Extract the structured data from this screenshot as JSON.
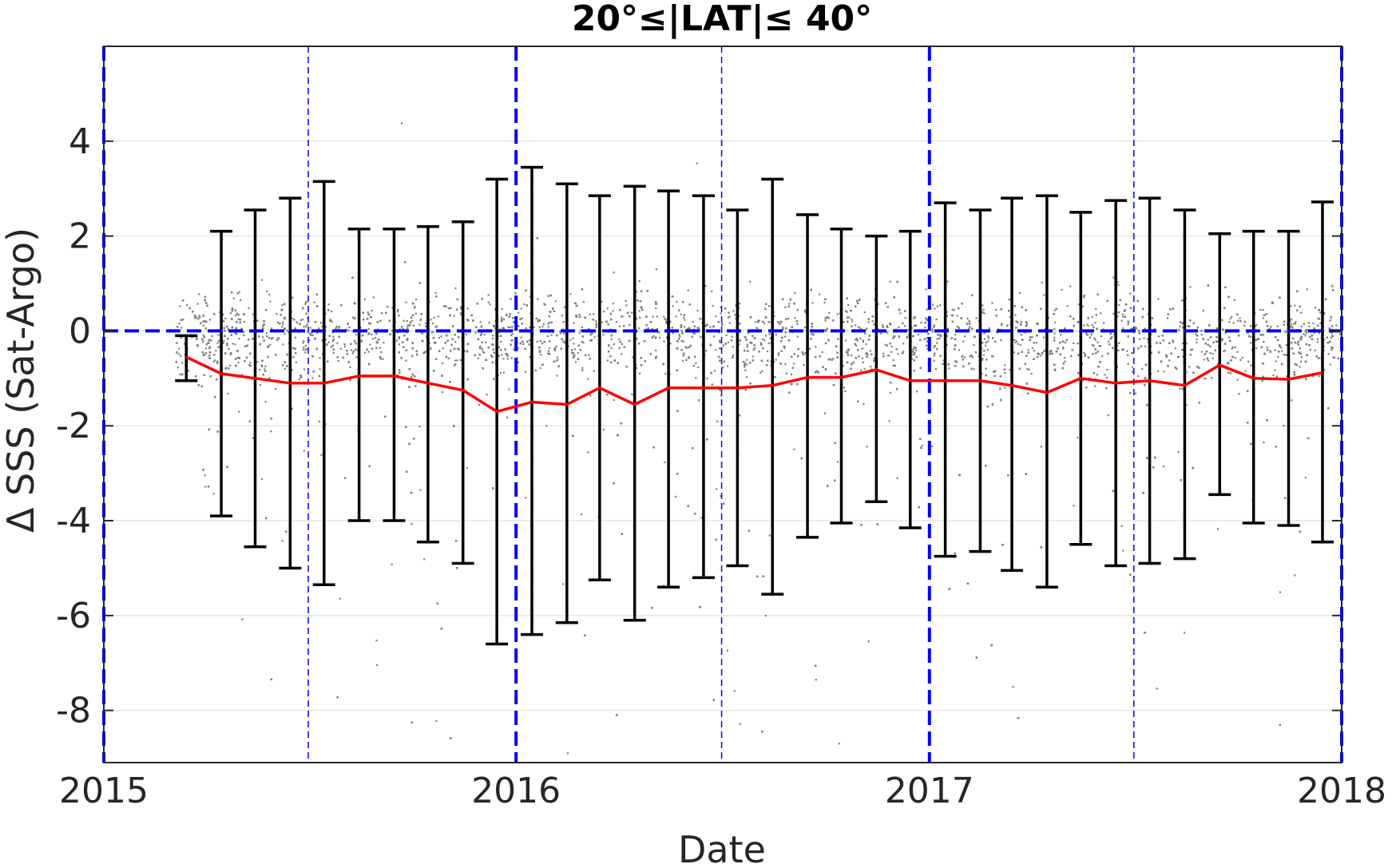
{
  "chart_data": {
    "type": "scatter",
    "title": "20°≤|LAT|≤ 40°",
    "xlabel": "Date",
    "ylabel": "Δ SSS (Sat-Argo)",
    "xlim": [
      "2015-01-01",
      "2018-01-01"
    ],
    "ylim": [
      -9.1,
      6.0
    ],
    "xticks": [
      "2015",
      "2016",
      "2017",
      "2018"
    ],
    "yticks": [
      4,
      2,
      0,
      -2,
      -4,
      -6,
      -8
    ],
    "grid": "horizontal",
    "zero_line": 0,
    "year_boundaries": [
      "2015-01-01",
      "2016-01-01",
      "2017-01-01",
      "2018-01-01"
    ],
    "half_year_markers": [
      "2015-07-01",
      "2016-07-01",
      "2017-07-01"
    ],
    "scatter_note": "dense cloud of individual Sat-Argo differences, mostly within -1 to +1",
    "monthly": {
      "dates": [
        "2015-03-15",
        "2015-04-15",
        "2015-05-15",
        "2015-06-15",
        "2015-07-15",
        "2015-08-15",
        "2015-09-15",
        "2015-10-15",
        "2015-11-15",
        "2015-12-15",
        "2016-01-15",
        "2016-02-15",
        "2016-03-15",
        "2016-04-15",
        "2016-05-15",
        "2016-06-15",
        "2016-07-15",
        "2016-08-15",
        "2016-09-15",
        "2016-10-15",
        "2016-11-15",
        "2016-12-15",
        "2017-01-15",
        "2017-02-15",
        "2017-03-15",
        "2017-04-15",
        "2017-05-15",
        "2017-06-15",
        "2017-07-15",
        "2017-08-15",
        "2017-09-15",
        "2017-10-15",
        "2017-11-15",
        "2017-12-15"
      ],
      "mean": [
        -0.55,
        -0.9,
        -1.0,
        -1.1,
        -1.1,
        -0.95,
        -0.95,
        -1.1,
        -1.25,
        -1.7,
        -1.5,
        -1.55,
        -1.2,
        -1.55,
        -1.2,
        -1.2,
        -1.2,
        -1.15,
        -0.98,
        -0.98,
        -0.82,
        -1.05,
        -1.05,
        -1.05,
        -1.15,
        -1.3,
        -1.0,
        -1.1,
        -1.05,
        -1.15,
        -0.72,
        -1.0,
        -1.02,
        -0.88
      ],
      "upper": [
        -0.1,
        2.1,
        2.55,
        2.8,
        3.15,
        2.15,
        2.15,
        2.2,
        2.3,
        3.2,
        3.45,
        3.1,
        2.85,
        3.05,
        2.95,
        2.85,
        2.55,
        3.2,
        2.45,
        2.15,
        2.0,
        2.1,
        2.7,
        2.55,
        2.8,
        2.85,
        2.5,
        2.75,
        2.8,
        2.55,
        2.05,
        2.1,
        2.1,
        2.72
      ],
      "lower": [
        -1.05,
        -3.9,
        -4.55,
        -5.0,
        -5.35,
        -4.0,
        -4.0,
        -4.45,
        -4.9,
        -6.6,
        -6.4,
        -6.15,
        -5.25,
        -6.1,
        -5.4,
        -5.2,
        -4.95,
        -5.55,
        -4.35,
        -4.05,
        -3.6,
        -4.15,
        -4.75,
        -4.65,
        -5.05,
        -5.4,
        -4.5,
        -4.95,
        -4.9,
        -4.8,
        -3.45,
        -4.05,
        -4.1,
        -4.45
      ]
    },
    "colors": {
      "mean_line": "#ff0000",
      "error_bars": "#000000",
      "scatter": "#808080",
      "reference_lines": "#0000ff",
      "grid": "#e6e6e6"
    }
  }
}
